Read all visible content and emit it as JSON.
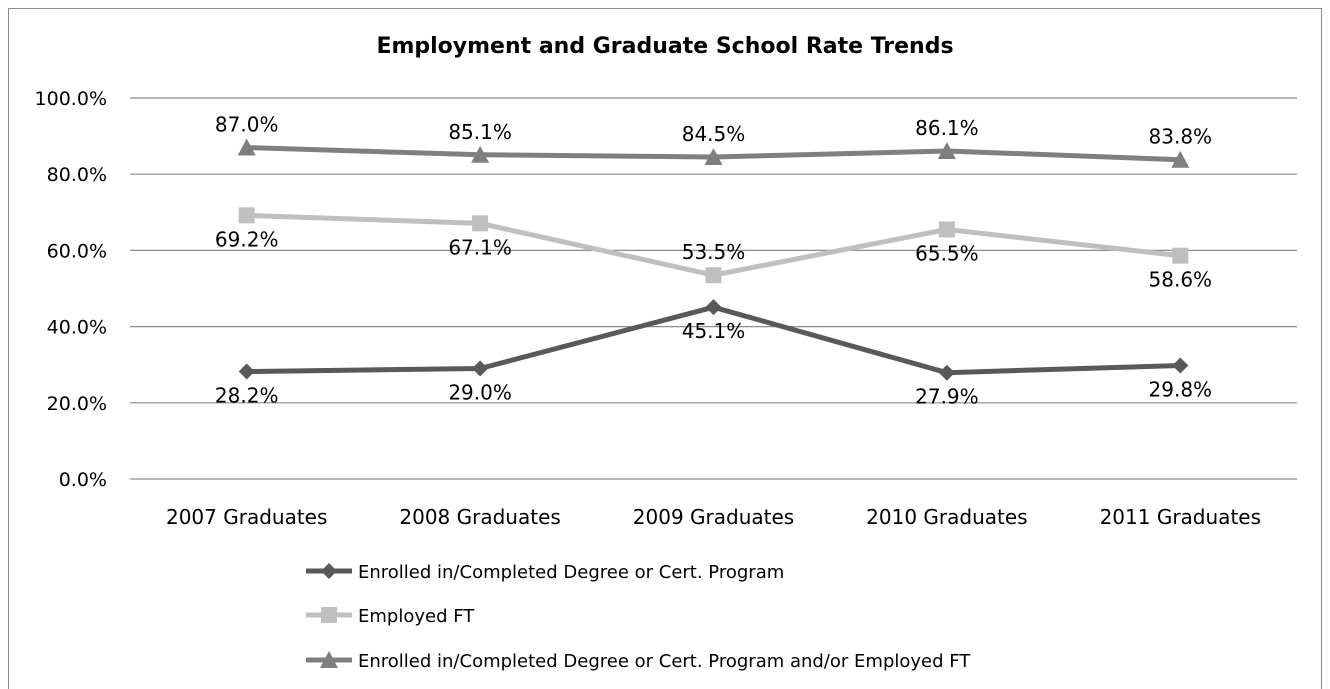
{
  "chart_data": {
    "type": "line",
    "title": "Employment and Graduate School Rate Trends",
    "categories": [
      "2007 Graduates",
      "2008 Graduates",
      "2009 Graduates",
      "2010 Graduates",
      "2011 Graduates"
    ],
    "ylim": [
      0,
      100
    ],
    "yticks": [
      "0.0%",
      "20.0%",
      "40.0%",
      "60.0%",
      "80.0%",
      "100.0%"
    ],
    "ytick_values": [
      0,
      20,
      40,
      60,
      80,
      100
    ],
    "grid": true,
    "legend_position": "bottom",
    "series": [
      {
        "name": "Enrolled in/Completed Degree or Cert. Program",
        "marker": "diamond",
        "color": "#595959",
        "values": [
          28.2,
          29.0,
          45.1,
          27.9,
          29.8
        ],
        "labels": [
          "28.2%",
          "29.0%",
          "45.1%",
          "27.9%",
          "29.8%"
        ]
      },
      {
        "name": "Employed FT",
        "marker": "square",
        "color": "#bfbfbf",
        "values": [
          69.2,
          67.1,
          53.5,
          65.5,
          58.6
        ],
        "labels": [
          "69.2%",
          "67.1%",
          "53.5%",
          "65.5%",
          "58.6%"
        ]
      },
      {
        "name": "Enrolled in/Completed Degree or Cert. Program and/or Employed FT",
        "marker": "triangle",
        "color": "#7f7f7f",
        "values": [
          87.0,
          85.1,
          84.5,
          86.1,
          83.8
        ],
        "labels": [
          "87.0%",
          "85.1%",
          "84.5%",
          "86.1%",
          "83.8%"
        ]
      }
    ]
  }
}
